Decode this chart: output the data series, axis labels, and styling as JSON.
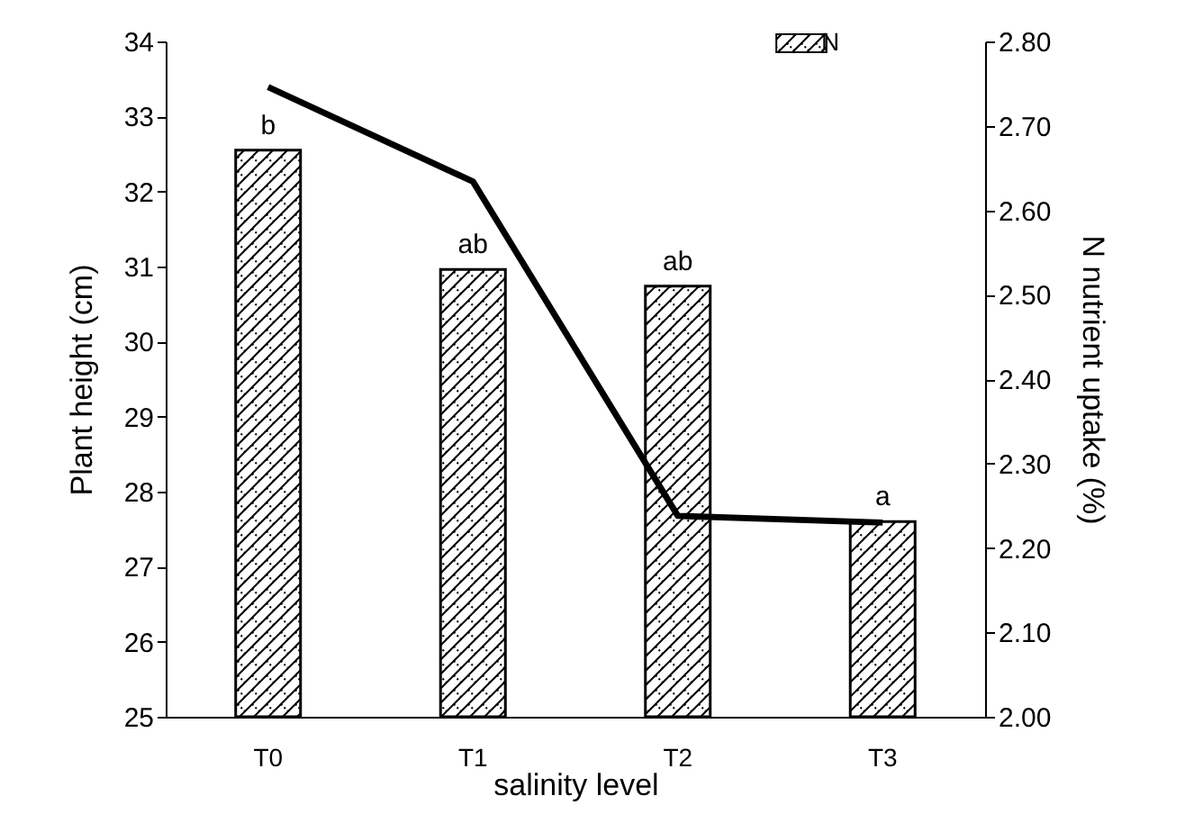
{
  "chart_data": {
    "type": "bar",
    "xlabel": "salinity level",
    "ylabel": "Plant height (cm)",
    "y2label": "N nutrient uptake (%)",
    "categories": [
      "T0",
      "T1",
      "T2",
      "T3"
    ],
    "series": [
      {
        "name": "N",
        "color": "#000000",
        "values": [
          32.55,
          30.96,
          30.74,
          27.6
        ]
      },
      {
        "type": "line",
        "axis": "y2",
        "color": "#000000",
        "values": [
          2.746,
          2.634,
          2.238,
          2.23
        ]
      }
    ],
    "ylim": [
      25,
      34
    ],
    "yticks": [
      25,
      26,
      27,
      28,
      29,
      30,
      31,
      32,
      33,
      34
    ],
    "y2lim": [
      2.0,
      2.8
    ],
    "y2ticks": [
      {
        "value": 2.0,
        "label": "2.00"
      },
      {
        "value": 2.1,
        "label": "2.10"
      },
      {
        "value": 2.2,
        "label": "2.20"
      },
      {
        "value": 2.3,
        "label": "2.30"
      },
      {
        "value": 2.4,
        "label": "2.40"
      },
      {
        "value": 2.5,
        "label": "2.50"
      },
      {
        "value": 2.6,
        "label": "2.60"
      },
      {
        "value": 2.7,
        "label": "2.70"
      },
      {
        "value": 2.8,
        "label": "2.80"
      }
    ],
    "annotations": [
      {
        "text": "b",
        "x": "T0",
        "y": 32.55
      },
      {
        "text": "ab",
        "x": "T1",
        "y": 30.96
      },
      {
        "text": "ab",
        "x": "T2",
        "y": 30.74
      },
      {
        "text": "a",
        "x": "T3",
        "y": 27.6
      }
    ],
    "legend": "top right",
    "grid": false,
    "marker": "none",
    "line_style": "solid"
  }
}
